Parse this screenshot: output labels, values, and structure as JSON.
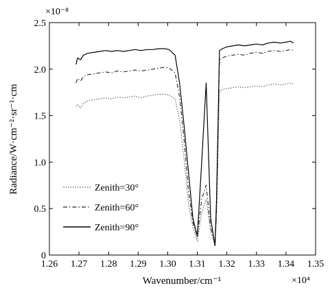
{
  "chart_data": {
    "type": "line",
    "xlabel": "Wavenumber/cm⁻¹",
    "ylabel": "Radiance/W·cm⁻²·sr⁻¹·cm",
    "x_multiplier": "×10⁴",
    "y_multiplier": "×10⁻⁸",
    "xlim": [
      1.26,
      1.35
    ],
    "ylim": [
      0,
      2.5
    ],
    "xticks": [
      "1.26",
      "1.27",
      "1.28",
      "1.29",
      "1.30",
      "1.31",
      "1.32",
      "1.33",
      "1.34",
      "1.35"
    ],
    "yticks": [
      "0",
      "0.5",
      "1.0",
      "1.5",
      "2.0",
      "2.5"
    ],
    "grid": false,
    "legend_position": "lower-left",
    "series": [
      {
        "name": "Zenith=30°",
        "style": "dotted",
        "x": [
          1.269,
          1.2695,
          1.2705,
          1.2715,
          1.273,
          1.275,
          1.277,
          1.279,
          1.281,
          1.283,
          1.285,
          1.287,
          1.289,
          1.291,
          1.293,
          1.295,
          1.297,
          1.299,
          1.3005,
          1.3025,
          1.304,
          1.3055,
          1.307,
          1.3085,
          1.31,
          1.3115,
          1.313,
          1.3145,
          1.316,
          1.3165,
          1.3175,
          1.3185,
          1.32,
          1.322,
          1.324,
          1.326,
          1.328,
          1.33,
          1.332,
          1.334,
          1.336,
          1.338,
          1.34,
          1.3415,
          1.3425
        ],
        "y": [
          1.6,
          1.62,
          1.58,
          1.63,
          1.66,
          1.67,
          1.68,
          1.69,
          1.68,
          1.7,
          1.69,
          1.7,
          1.71,
          1.69,
          1.71,
          1.72,
          1.73,
          1.73,
          1.72,
          1.68,
          1.45,
          1.05,
          0.55,
          0.3,
          0.15,
          0.45,
          0.6,
          0.25,
          0.1,
          0.4,
          1.76,
          1.78,
          1.79,
          1.8,
          1.81,
          1.8,
          1.81,
          1.82,
          1.81,
          1.83,
          1.84,
          1.83,
          1.84,
          1.85,
          1.84
        ]
      },
      {
        "name": "Zenith=60°",
        "style": "dash-dot",
        "x": [
          1.269,
          1.2695,
          1.2705,
          1.2715,
          1.273,
          1.275,
          1.277,
          1.279,
          1.281,
          1.283,
          1.285,
          1.287,
          1.289,
          1.291,
          1.293,
          1.295,
          1.297,
          1.299,
          1.3005,
          1.3025,
          1.304,
          1.3055,
          1.307,
          1.3085,
          1.31,
          1.3115,
          1.313,
          1.3145,
          1.316,
          1.3165,
          1.3175,
          1.3185,
          1.32,
          1.322,
          1.324,
          1.326,
          1.328,
          1.33,
          1.332,
          1.334,
          1.336,
          1.338,
          1.34,
          1.3415,
          1.3425
        ],
        "y": [
          1.85,
          1.9,
          1.87,
          1.92,
          1.94,
          1.95,
          1.96,
          1.97,
          1.96,
          1.98,
          1.97,
          1.98,
          1.99,
          1.98,
          1.99,
          2.0,
          2.01,
          2.02,
          2.01,
          1.96,
          1.7,
          1.25,
          0.7,
          0.35,
          0.2,
          0.6,
          0.75,
          0.3,
          0.12,
          0.5,
          2.1,
          2.12,
          2.14,
          2.15,
          2.16,
          2.15,
          2.17,
          2.18,
          2.17,
          2.19,
          2.2,
          2.19,
          2.2,
          2.21,
          2.2
        ]
      },
      {
        "name": "Zenith=90°",
        "style": "solid",
        "x": [
          1.269,
          1.2695,
          1.2705,
          1.2715,
          1.273,
          1.275,
          1.277,
          1.279,
          1.281,
          1.283,
          1.285,
          1.287,
          1.289,
          1.291,
          1.293,
          1.295,
          1.297,
          1.299,
          1.3005,
          1.3025,
          1.304,
          1.3055,
          1.307,
          1.3085,
          1.31,
          1.3115,
          1.313,
          1.3145,
          1.316,
          1.3165,
          1.3175,
          1.3185,
          1.32,
          1.322,
          1.324,
          1.326,
          1.328,
          1.33,
          1.332,
          1.334,
          1.336,
          1.338,
          1.34,
          1.3415,
          1.3425
        ],
        "y": [
          2.05,
          2.12,
          2.1,
          2.15,
          2.17,
          2.18,
          2.19,
          2.2,
          2.19,
          2.2,
          2.19,
          2.2,
          2.21,
          2.2,
          2.21,
          2.21,
          2.22,
          2.22,
          2.21,
          2.15,
          1.85,
          1.4,
          0.9,
          0.4,
          0.2,
          1.0,
          1.85,
          0.4,
          0.1,
          0.6,
          2.2,
          2.22,
          2.24,
          2.25,
          2.26,
          2.25,
          2.26,
          2.27,
          2.26,
          2.28,
          2.29,
          2.28,
          2.29,
          2.3,
          2.28
        ]
      }
    ]
  }
}
